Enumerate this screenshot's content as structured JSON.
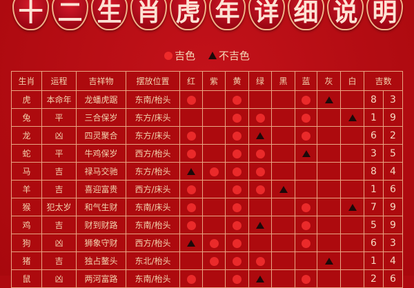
{
  "title_chars": [
    "十",
    "二",
    "生",
    "肖",
    "虎",
    "年",
    "详",
    "细",
    "说",
    "明"
  ],
  "legend": {
    "good": "吉色",
    "bad": "不吉色"
  },
  "colors": {
    "good_mark": "#ea2a2a",
    "bad_mark": "#1c0a0a",
    "background": "#b50a0f",
    "border": "#e9a784"
  },
  "headers": [
    "生肖",
    "运程",
    "吉祥物",
    "摆放位置",
    "红",
    "紫",
    "黄",
    "绿",
    "黑",
    "蓝",
    "灰",
    "白",
    "吉数"
  ],
  "rows": [
    {
      "zodiac": "虎",
      "fortune": "本命年",
      "mascot": "龙蟠虎踞",
      "position": "东南/枱头",
      "marks": [
        "o",
        "",
        "o",
        "",
        "",
        "o",
        "^",
        ""
      ],
      "nums": [
        "8",
        "3"
      ]
    },
    {
      "zodiac": "兔",
      "fortune": "平",
      "mascot": "三合保岁",
      "position": "东方/床头",
      "marks": [
        "",
        "",
        "o",
        "o",
        "",
        "o",
        "",
        "^"
      ],
      "nums": [
        "1",
        "9"
      ]
    },
    {
      "zodiac": "龙",
      "fortune": "凶",
      "mascot": "四灵聚合",
      "position": "东方/床头",
      "marks": [
        "o",
        "",
        "o",
        "^",
        "",
        "o",
        "",
        ""
      ],
      "nums": [
        "6",
        "2"
      ]
    },
    {
      "zodiac": "蛇",
      "fortune": "平",
      "mascot": "牛鸡保岁",
      "position": "西方/枱头",
      "marks": [
        "o",
        "",
        "o",
        "o",
        "",
        "^",
        "",
        ""
      ],
      "nums": [
        "3",
        "5"
      ]
    },
    {
      "zodiac": "马",
      "fortune": "吉",
      "mascot": "禄马交驰",
      "position": "东方/枱头",
      "marks": [
        "^",
        "o",
        "o",
        "o",
        "",
        "",
        "",
        ""
      ],
      "nums": [
        "8",
        "4"
      ]
    },
    {
      "zodiac": "羊",
      "fortune": "吉",
      "mascot": "喜迎富贵",
      "position": "西方/床头",
      "marks": [
        "o",
        "",
        "o",
        "o",
        "^",
        "",
        "",
        ""
      ],
      "nums": [
        "1",
        "6"
      ]
    },
    {
      "zodiac": "猴",
      "fortune": "犯太岁",
      "mascot": "和气生财",
      "position": "东南/床头",
      "marks": [
        "o",
        "",
        "o",
        "",
        "",
        "o",
        "",
        "^"
      ],
      "nums": [
        "7",
        "9"
      ]
    },
    {
      "zodiac": "鸡",
      "fortune": "吉",
      "mascot": "财到财路",
      "position": "东南/枱头",
      "marks": [
        "o",
        "",
        "o",
        "^",
        "",
        "o",
        "",
        ""
      ],
      "nums": [
        "5",
        "9"
      ]
    },
    {
      "zodiac": "狗",
      "fortune": "凶",
      "mascot": "狮象守财",
      "position": "西方/枱头",
      "marks": [
        "^",
        "o",
        "o",
        "",
        "",
        "o",
        "",
        ""
      ],
      "nums": [
        "6",
        "3"
      ]
    },
    {
      "zodiac": "猪",
      "fortune": "吉",
      "mascot": "独占鳌头",
      "position": "东北/枱头",
      "marks": [
        "",
        "o",
        "o",
        "o",
        "",
        "",
        "^",
        ""
      ],
      "nums": [
        "1",
        "4"
      ]
    },
    {
      "zodiac": "鼠",
      "fortune": "凶",
      "mascot": "两河富路",
      "position": "东南/枱头",
      "marks": [
        "o",
        "",
        "o",
        "^",
        "",
        "o",
        "",
        ""
      ],
      "nums": [
        "2",
        "6"
      ]
    }
  ]
}
